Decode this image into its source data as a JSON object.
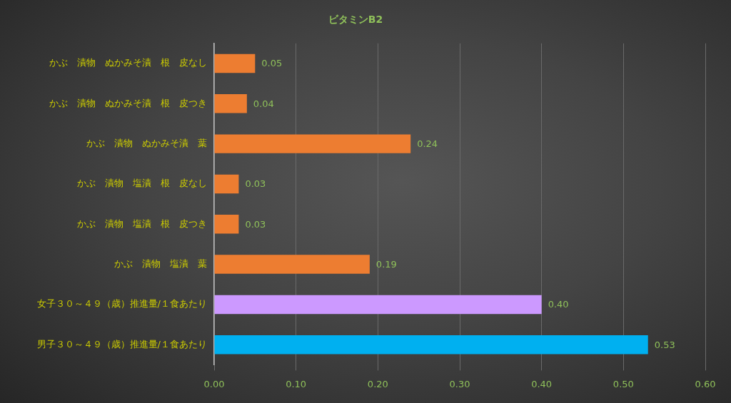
{
  "chart_data": {
    "type": "bar",
    "orientation": "horizontal",
    "title": "ビタミンB2",
    "categories": [
      "かぶ　漬物　ぬかみそ漬　根　皮なし",
      "かぶ　漬物　ぬかみそ漬　根　皮つき",
      "かぶ　漬物　ぬかみそ漬　葉",
      "かぶ　漬物　塩漬　根　皮なし",
      "かぶ　漬物　塩漬　根　皮つき",
      "かぶ　漬物　塩漬　葉",
      "女子３０～４９（歳）推進量/１食あたり",
      "男子３０～４９（歳）推進量/１食あたり"
    ],
    "values": [
      0.05,
      0.04,
      0.24,
      0.03,
      0.03,
      0.19,
      0.4,
      0.53
    ],
    "value_labels": [
      "0.05",
      "0.04",
      "0.24",
      "0.03",
      "0.03",
      "0.19",
      "0.40",
      "0.53"
    ],
    "colors": [
      "#ed7d31",
      "#ed7d31",
      "#ed7d31",
      "#ed7d31",
      "#ed7d31",
      "#ed7d31",
      "#cc99ff",
      "#00b0f0"
    ],
    "xlim": [
      0,
      0.6
    ],
    "xticks": [
      {
        "value": 0,
        "label": "0.00"
      },
      {
        "value": 0.1,
        "label": "0.10"
      },
      {
        "value": 0.2,
        "label": "0.20"
      },
      {
        "value": 0.3,
        "label": "0.30"
      },
      {
        "value": 0.4,
        "label": "0.40"
      },
      {
        "value": 0.5,
        "label": "0.50"
      },
      {
        "value": 0.6,
        "label": "0.60"
      }
    ],
    "grid": "x"
  }
}
